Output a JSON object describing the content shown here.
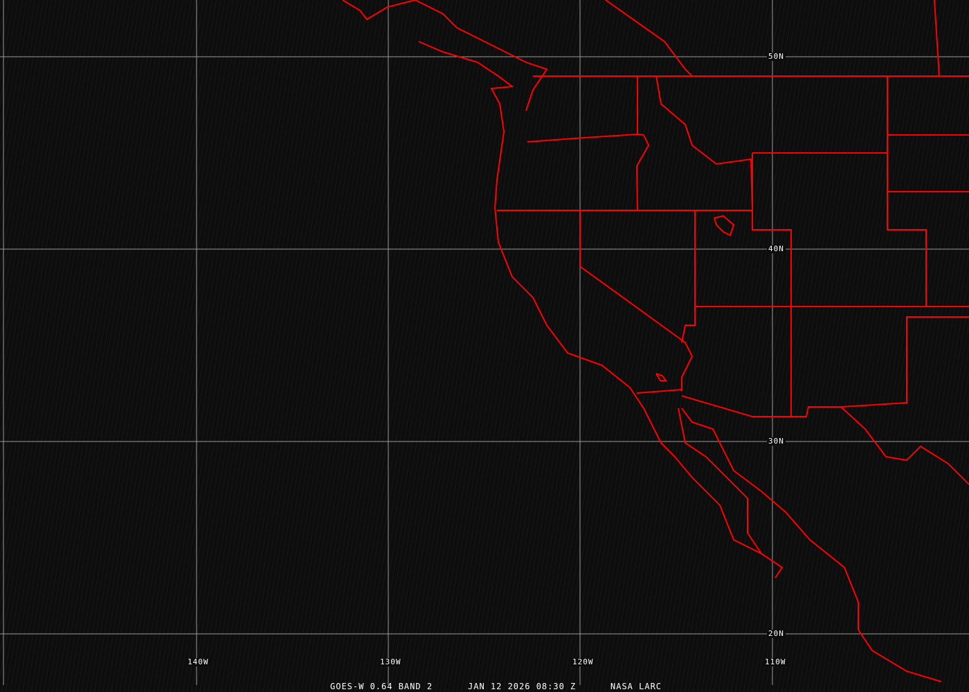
{
  "caption": {
    "sensor": "GOES-W 0.64 BAND 2",
    "datetime": "JAN 12 2026 08:30 Z",
    "credit": "NASA LARC"
  },
  "lon_labels": [
    "140W",
    "130W",
    "120W",
    "110W"
  ],
  "lat_labels": [
    "50N",
    "40N",
    "30N",
    "20N"
  ],
  "colors": {
    "background": "#0c0c0c",
    "boundaries": "#ff0000",
    "grid": "#9a9a9a",
    "text": "#ffffff"
  }
}
